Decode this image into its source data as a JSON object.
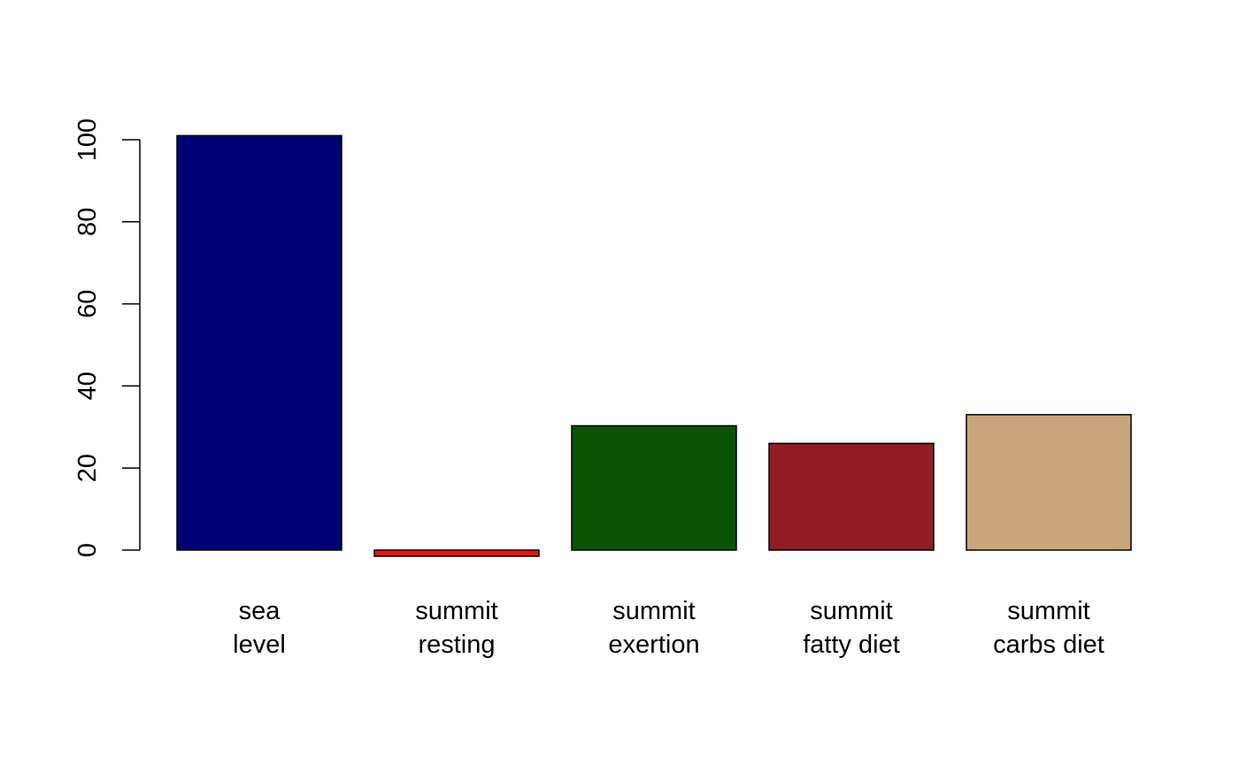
{
  "chart_data": {
    "type": "bar",
    "categories": [
      {
        "line1": "sea",
        "line2": "level"
      },
      {
        "line1": "summit",
        "line2": "resting"
      },
      {
        "line1": "summit",
        "line2": "exertion"
      },
      {
        "line1": "summit",
        "line2": "fatty diet"
      },
      {
        "line1": "summit",
        "line2": "carbs diet"
      }
    ],
    "values": [
      101,
      -1.5,
      30.3,
      26,
      33
    ],
    "colors": [
      "#000074",
      "#ee1111",
      "#0a5304",
      "#921c24",
      "#c8a679"
    ],
    "ylim": [
      0,
      100
    ],
    "yticks": [
      "0",
      "20",
      "40",
      "60",
      "80",
      "100"
    ],
    "title": "",
    "xlabel": "",
    "ylabel": "",
    "grid": false,
    "legend": "none"
  }
}
